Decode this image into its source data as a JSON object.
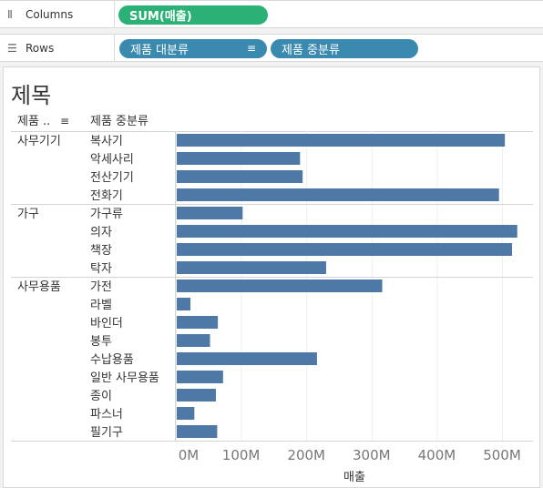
{
  "shelves": {
    "columns": {
      "label": "Columns",
      "icon": "columns-icon",
      "pill": "SUM(매출)"
    },
    "rows": {
      "label": "Rows",
      "icon": "rows-icon",
      "pills": [
        "제품 대분류",
        "제품 중분류"
      ]
    }
  },
  "colors": {
    "bar": "#4e79a7",
    "pill_measure": "#2bb075",
    "pill_dimension": "#3a8ab0"
  },
  "chart_data": {
    "type": "bar",
    "orientation": "horizontal",
    "title": "제목",
    "row_headers": [
      "제품 ..",
      "제품 중분류"
    ],
    "xlabel": "매출",
    "xlim": [
      0,
      540000000
    ],
    "x_ticks": [
      0,
      100000000,
      200000000,
      300000000,
      400000000,
      500000000
    ],
    "x_tick_labels": [
      "0M",
      "100M",
      "200M",
      "300M",
      "400M",
      "500M"
    ],
    "groups": [
      {
        "name": "사무기기",
        "categories": [
          "복사기",
          "악세사리",
          "전산기기",
          "전화기"
        ],
        "values": [
          503000000,
          189000000,
          193000000,
          494000000
        ]
      },
      {
        "name": "가구",
        "categories": [
          "가구류",
          "의자",
          "책장",
          "탁자"
        ],
        "values": [
          101000000,
          522000000,
          514000000,
          229000000
        ]
      },
      {
        "name": "사무용품",
        "categories": [
          "가전",
          "라벨",
          "바인더",
          "봉투",
          "수납용품",
          "일반 사무용품",
          "종이",
          "파스너",
          "필기구"
        ],
        "values": [
          315000000,
          21000000,
          63000000,
          51000000,
          215000000,
          71000000,
          60000000,
          27000000,
          62000000
        ]
      }
    ]
  }
}
